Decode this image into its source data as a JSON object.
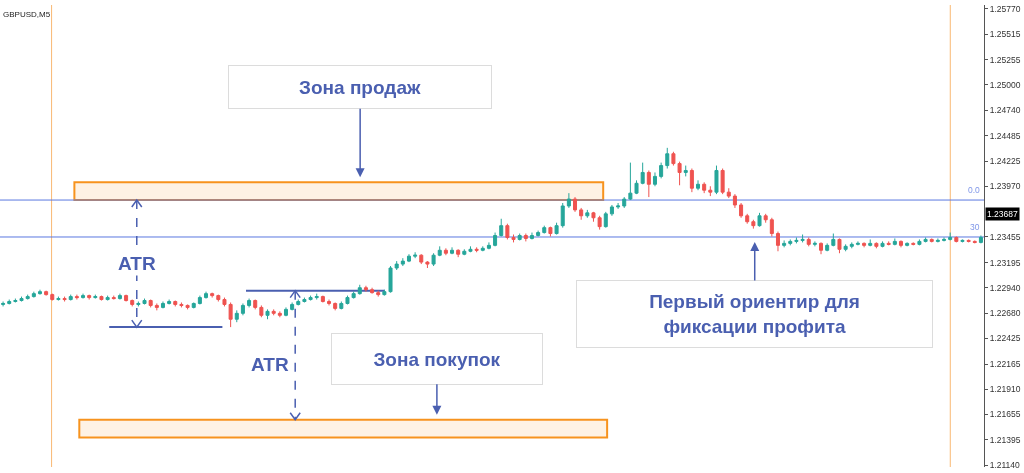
{
  "chart_data": {
    "type": "candlestick",
    "title": "GBPUSD,M5",
    "categories": [
      null,
      null,
      null,
      null,
      null,
      null,
      null,
      null,
      null,
      null,
      null,
      null,
      null,
      null,
      null,
      null,
      null,
      null,
      null,
      null,
      null,
      null,
      null,
      null,
      null,
      null,
      null,
      null,
      null,
      null,
      null,
      null,
      null,
      null,
      null,
      null,
      null,
      null,
      null,
      null,
      null,
      null,
      null,
      null,
      null,
      null,
      null,
      null,
      null,
      null,
      null,
      null,
      null,
      null,
      null,
      null,
      null,
      null,
      null,
      null,
      null,
      null,
      null,
      null,
      null,
      null,
      null,
      null,
      null,
      null,
      null,
      null,
      null,
      null,
      null,
      null,
      null,
      null,
      null,
      null,
      null,
      null,
      null,
      null,
      null,
      null,
      null,
      null,
      null,
      null,
      null,
      null,
      null,
      null,
      null,
      null,
      null,
      null,
      null,
      null,
      null,
      null,
      null,
      null,
      null,
      null,
      null,
      null,
      null,
      null,
      null,
      null,
      null,
      null,
      null,
      null,
      null,
      null,
      null,
      null,
      null,
      null,
      null,
      null,
      null,
      null,
      null,
      null,
      null,
      null,
      null,
      null,
      null,
      null,
      null,
      null,
      null,
      null,
      null,
      null,
      null,
      null,
      null,
      null,
      null,
      null,
      null,
      null,
      null,
      null,
      null,
      null,
      null,
      null,
      null,
      null,
      null,
      null,
      null,
      null
    ],
    "ohlc": [
      [
        1.2277,
        1.228,
        1.2275,
        1.2278
      ],
      [
        1.2278,
        1.2282,
        1.2277,
        1.228
      ],
      [
        1.228,
        1.2283,
        1.2279,
        1.2281
      ],
      [
        1.2281,
        1.2285,
        1.228,
        1.2283
      ],
      [
        1.2283,
        1.2287,
        1.2282,
        1.2285
      ],
      [
        1.2285,
        1.229,
        1.2284,
        1.2288
      ],
      [
        1.2288,
        1.2292,
        1.2287,
        1.229
      ],
      [
        1.229,
        1.2291,
        1.2286,
        1.2287
      ],
      [
        1.2287,
        1.2288,
        1.2281,
        1.2282
      ],
      [
        1.2282,
        1.2285,
        1.2281,
        1.2283
      ],
      [
        1.2283,
        1.2285,
        1.228,
        1.2282
      ],
      [
        1.2282,
        1.2287,
        1.2281,
        1.2285
      ],
      [
        1.2285,
        1.2287,
        1.2282,
        1.2284
      ],
      [
        1.2284,
        1.2288,
        1.2283,
        1.2286
      ],
      [
        1.2286,
        1.2287,
        1.2282,
        1.2284
      ],
      [
        1.2284,
        1.2287,
        1.2283,
        1.2285
      ],
      [
        1.2285,
        1.2286,
        1.2281,
        1.2282
      ],
      [
        1.2282,
        1.2286,
        1.2281,
        1.2284
      ],
      [
        1.2284,
        1.2286,
        1.2282,
        1.2283
      ],
      [
        1.2283,
        1.2288,
        1.2282,
        1.2286
      ],
      [
        1.2286,
        1.2287,
        1.228,
        1.2281
      ],
      [
        1.2281,
        1.2282,
        1.2275,
        1.2277
      ],
      [
        1.2277,
        1.228,
        1.2275,
        1.2278
      ],
      [
        1.2278,
        1.2283,
        1.2277,
        1.2281
      ],
      [
        1.2281,
        1.2282,
        1.2274,
        1.2276
      ],
      [
        1.2276,
        1.2278,
        1.2271,
        1.2274
      ],
      [
        1.2274,
        1.228,
        1.2273,
        1.2278
      ],
      [
        1.2278,
        1.2282,
        1.2277,
        1.228
      ],
      [
        1.228,
        1.2281,
        1.2275,
        1.2277
      ],
      [
        1.2277,
        1.2279,
        1.2274,
        1.2276
      ],
      [
        1.2276,
        1.2277,
        1.2272,
        1.2274
      ],
      [
        1.2274,
        1.2279,
        1.2273,
        1.2278
      ],
      [
        1.2278,
        1.2286,
        1.2277,
        1.2284
      ],
      [
        1.2284,
        1.229,
        1.2283,
        1.2288
      ],
      [
        1.2288,
        1.2289,
        1.2284,
        1.2286
      ],
      [
        1.2286,
        1.2287,
        1.228,
        1.2282
      ],
      [
        1.2282,
        1.2284,
        1.2275,
        1.2277
      ],
      [
        1.2277,
        1.2279,
        1.2254,
        1.2262
      ],
      [
        1.2262,
        1.2271,
        1.2259,
        1.2268
      ],
      [
        1.2268,
        1.2278,
        1.2266,
        1.2276
      ],
      [
        1.2276,
        1.2283,
        1.2274,
        1.2281
      ],
      [
        1.2281,
        1.2282,
        1.2272,
        1.2274
      ],
      [
        1.2274,
        1.2276,
        1.2264,
        1.2266
      ],
      [
        1.2266,
        1.2272,
        1.2262,
        1.227
      ],
      [
        1.227,
        1.2272,
        1.2266,
        1.2268
      ],
      [
        1.2268,
        1.227,
        1.2264,
        1.2266
      ],
      [
        1.2266,
        1.2274,
        1.2265,
        1.2272
      ],
      [
        1.2272,
        1.2279,
        1.2271,
        1.2277
      ],
      [
        1.2277,
        1.2282,
        1.2276,
        1.228
      ],
      [
        1.228,
        1.2284,
        1.2279,
        1.2282
      ],
      [
        1.2282,
        1.2286,
        1.2281,
        1.2284
      ],
      [
        1.2284,
        1.2288,
        1.2282,
        1.2285
      ],
      [
        1.2285,
        1.2286,
        1.2279,
        1.228
      ],
      [
        1.228,
        1.2282,
        1.2276,
        1.2278
      ],
      [
        1.2278,
        1.2279,
        1.2271,
        1.2273
      ],
      [
        1.2273,
        1.228,
        1.2272,
        1.2278
      ],
      [
        1.2278,
        1.2286,
        1.2277,
        1.2284
      ],
      [
        1.2284,
        1.229,
        1.2283,
        1.2288
      ],
      [
        1.2288,
        1.2297,
        1.2287,
        1.2294
      ],
      [
        1.2294,
        1.2296,
        1.229,
        1.2292
      ],
      [
        1.2292,
        1.2294,
        1.2288,
        1.2289
      ],
      [
        1.2289,
        1.2291,
        1.2285,
        1.2287
      ],
      [
        1.2287,
        1.2292,
        1.2286,
        1.229
      ],
      [
        1.229,
        1.2316,
        1.2289,
        1.2314
      ],
      [
        1.2314,
        1.2321,
        1.2312,
        1.2318
      ],
      [
        1.2318,
        1.2324,
        1.2316,
        1.2321
      ],
      [
        1.2321,
        1.2328,
        1.232,
        1.2326
      ],
      [
        1.2326,
        1.233,
        1.2324,
        1.2327
      ],
      [
        1.2327,
        1.2328,
        1.2318,
        1.232
      ],
      [
        1.232,
        1.2321,
        1.2314,
        1.2318
      ],
      [
        1.2318,
        1.2329,
        1.2316,
        1.2327
      ],
      [
        1.2327,
        1.2336,
        1.2326,
        1.2332
      ],
      [
        1.2332,
        1.2334,
        1.2327,
        1.2329
      ],
      [
        1.2329,
        1.2335,
        1.2328,
        1.2332
      ],
      [
        1.2332,
        1.2333,
        1.2325,
        1.2328
      ],
      [
        1.2328,
        1.2333,
        1.2327,
        1.2331
      ],
      [
        1.2331,
        1.2336,
        1.233,
        1.2333
      ],
      [
        1.2333,
        1.2335,
        1.233,
        1.2332
      ],
      [
        1.2332,
        1.2336,
        1.2331,
        1.2334
      ],
      [
        1.2334,
        1.234,
        1.2333,
        1.2337
      ],
      [
        1.2337,
        1.235,
        1.2336,
        1.2347
      ],
      [
        1.2347,
        1.2364,
        1.2346,
        1.2357
      ],
      [
        1.2357,
        1.2359,
        1.2343,
        1.2345
      ],
      [
        1.2345,
        1.2348,
        1.234,
        1.2343
      ],
      [
        1.2343,
        1.2349,
        1.2342,
        1.2347
      ],
      [
        1.2347,
        1.2349,
        1.2341,
        1.2344
      ],
      [
        1.2344,
        1.235,
        1.2343,
        1.2347
      ],
      [
        1.2347,
        1.2352,
        1.2346,
        1.235
      ],
      [
        1.235,
        1.2357,
        1.2349,
        1.2355
      ],
      [
        1.2355,
        1.2356,
        1.2346,
        1.2349
      ],
      [
        1.2349,
        1.236,
        1.2348,
        1.2357
      ],
      [
        1.2357,
        1.238,
        1.2355,
        1.2377
      ],
      [
        1.2377,
        1.239,
        1.2375,
        1.2384
      ],
      [
        1.2384,
        1.2386,
        1.2371,
        1.2373
      ],
      [
        1.2373,
        1.2375,
        1.2363,
        1.2367
      ],
      [
        1.2367,
        1.2373,
        1.2365,
        1.237
      ],
      [
        1.237,
        1.2371,
        1.2361,
        1.2365
      ],
      [
        1.2365,
        1.2367,
        1.2353,
        1.2356
      ],
      [
        1.2356,
        1.2371,
        1.2355,
        1.2369
      ],
      [
        1.2369,
        1.2378,
        1.2367,
        1.2376
      ],
      [
        1.2376,
        1.238,
        1.2374,
        1.2377
      ],
      [
        1.2377,
        1.2386,
        1.2375,
        1.2384
      ],
      [
        1.2384,
        1.2421,
        1.2383,
        1.239
      ],
      [
        1.239,
        1.2403,
        1.2389,
        1.24
      ],
      [
        1.24,
        1.2421,
        1.2399,
        1.2411
      ],
      [
        1.2411,
        1.2413,
        1.2386,
        1.2399
      ],
      [
        1.2399,
        1.2411,
        1.2397,
        1.2407
      ],
      [
        1.2407,
        1.2421,
        1.2405,
        1.2418
      ],
      [
        1.2418,
        1.2436,
        1.2415,
        1.243
      ],
      [
        1.243,
        1.2432,
        1.2418,
        1.242
      ],
      [
        1.242,
        1.2422,
        1.2398,
        1.2411
      ],
      [
        1.2411,
        1.2418,
        1.2407,
        1.2413
      ],
      [
        1.2413,
        1.2415,
        1.2391,
        1.2395
      ],
      [
        1.2395,
        1.2403,
        1.2393,
        1.2399
      ],
      [
        1.2399,
        1.2401,
        1.239,
        1.2393
      ],
      [
        1.2393,
        1.2397,
        1.2387,
        1.2391
      ],
      [
        1.2391,
        1.2418,
        1.2389,
        1.2413
      ],
      [
        1.2413,
        1.2415,
        1.2389,
        1.2391
      ],
      [
        1.2391,
        1.2395,
        1.2385,
        1.2387
      ],
      [
        1.2387,
        1.2389,
        1.2375,
        1.2378
      ],
      [
        1.2378,
        1.238,
        1.2365,
        1.2367
      ],
      [
        1.2367,
        1.2369,
        1.2359,
        1.2361
      ],
      [
        1.2361,
        1.2363,
        1.2354,
        1.2357
      ],
      [
        1.2357,
        1.237,
        1.2356,
        1.2367
      ],
      [
        1.2367,
        1.2369,
        1.236,
        1.2363
      ],
      [
        1.2363,
        1.2365,
        1.2346,
        1.2349
      ],
      [
        1.2349,
        1.2351,
        1.2331,
        1.2337
      ],
      [
        1.2337,
        1.2342,
        1.2335,
        1.2339
      ],
      [
        1.2339,
        1.2343,
        1.2337,
        1.2341
      ],
      [
        1.2341,
        1.2345,
        1.2339,
        1.2342
      ],
      [
        1.2342,
        1.2348,
        1.234,
        1.2343
      ],
      [
        1.2343,
        1.2345,
        1.2336,
        1.2338
      ],
      [
        1.2338,
        1.2341,
        1.2336,
        1.2339
      ],
      [
        1.2339,
        1.234,
        1.2328,
        1.2332
      ],
      [
        1.2332,
        1.2339,
        1.2331,
        1.2337
      ],
      [
        1.2337,
        1.2349,
        1.2336,
        1.2343
      ],
      [
        1.2343,
        1.2344,
        1.2329,
        1.2333
      ],
      [
        1.2333,
        1.2338,
        1.2331,
        1.2336
      ],
      [
        1.2336,
        1.234,
        1.2334,
        1.2338
      ],
      [
        1.2338,
        1.2341,
        1.2337,
        1.2339
      ],
      [
        1.2339,
        1.234,
        1.2335,
        1.2337
      ],
      [
        1.2337,
        1.2343,
        1.2336,
        1.2339
      ],
      [
        1.2339,
        1.234,
        1.2334,
        1.2336
      ],
      [
        1.2336,
        1.2341,
        1.2335,
        1.2339
      ],
      [
        1.2339,
        1.2341,
        1.2337,
        1.2338
      ],
      [
        1.2338,
        1.2344,
        1.2337,
        1.2341
      ],
      [
        1.2341,
        1.2342,
        1.2335,
        1.2337
      ],
      [
        1.2337,
        1.234,
        1.2336,
        1.2339
      ],
      [
        1.2339,
        1.234,
        1.2337,
        1.2338
      ],
      [
        1.2338,
        1.2343,
        1.2337,
        1.2341
      ],
      [
        1.2341,
        1.2345,
        1.234,
        1.2343
      ],
      [
        1.2343,
        1.2344,
        1.234,
        1.2341
      ],
      [
        1.2341,
        1.2344,
        1.234,
        1.2342
      ],
      [
        1.2342,
        1.2345,
        1.2341,
        1.2343
      ],
      [
        1.2343,
        1.235,
        1.2342,
        1.2345
      ],
      [
        1.2345,
        1.2346,
        1.234,
        1.2341
      ],
      [
        1.2341,
        1.2343,
        1.234,
        1.2342
      ],
      [
        1.2342,
        1.2343,
        1.234,
        1.2341
      ],
      [
        1.2341,
        1.2342,
        1.2339,
        1.234
      ],
      [
        1.234,
        1.2347,
        1.2339,
        1.2345
      ]
    ],
    "colors": [
      "#26a69a",
      "#26a69a",
      "#26a69a",
      "#26a69a",
      "#26a69a",
      "#26a69a",
      "#26a69a",
      "#ef5350",
      "#ef5350",
      "#26a69a",
      "#ef5350",
      "#26a69a",
      "#ef5350",
      "#26a69a",
      "#ef5350",
      "#26a69a",
      "#ef5350",
      "#26a69a",
      "#ef5350",
      "#26a69a",
      "#ef5350",
      "#ef5350",
      "#26a69a",
      "#26a69a",
      "#ef5350",
      "#ef5350",
      "#26a69a",
      "#26a69a",
      "#ef5350",
      "#ef5350",
      "#ef5350",
      "#26a69a",
      "#26a69a",
      "#26a69a",
      "#ef5350",
      "#ef5350",
      "#ef5350",
      "#ef5350",
      "#26a69a",
      "#26a69a",
      "#26a69a",
      "#ef5350",
      "#ef5350",
      "#26a69a",
      "#ef5350",
      "#ef5350",
      "#26a69a",
      "#26a69a",
      "#26a69a",
      "#26a69a",
      "#26a69a",
      "#26a69a",
      "#ef5350",
      "#ef5350",
      "#ef5350",
      "#26a69a",
      "#26a69a",
      "#26a69a",
      "#26a69a",
      "#ef5350",
      "#ef5350",
      "#ef5350",
      "#26a69a",
      "#26a69a",
      "#26a69a",
      "#26a69a",
      "#26a69a",
      "#26a69a",
      "#ef5350",
      "#ef5350",
      "#26a69a",
      "#26a69a",
      "#ef5350",
      "#26a69a",
      "#ef5350",
      "#26a69a",
      "#26a69a",
      "#ef5350",
      "#26a69a",
      "#26a69a",
      "#26a69a",
      "#26a69a",
      "#ef5350",
      "#ef5350",
      "#26a69a",
      "#ef5350",
      "#26a69a",
      "#26a69a",
      "#26a69a",
      "#ef5350",
      "#26a69a",
      "#26a69a",
      "#26a69a",
      "#ef5350",
      "#ef5350",
      "#26a69a",
      "#ef5350",
      "#ef5350",
      "#26a69a",
      "#26a69a",
      "#26a69a",
      "#26a69a",
      "#26a69a",
      "#26a69a",
      "#26a69a",
      "#ef5350",
      "#26a69a",
      "#26a69a",
      "#26a69a",
      "#ef5350",
      "#ef5350",
      "#26a69a",
      "#ef5350",
      "#26a69a",
      "#ef5350",
      "#ef5350",
      "#26a69a",
      "#ef5350",
      "#ef5350",
      "#ef5350",
      "#ef5350",
      "#ef5350",
      "#ef5350",
      "#26a69a",
      "#ef5350",
      "#ef5350",
      "#ef5350",
      "#26a69a",
      "#26a69a",
      "#26a69a",
      "#26a69a",
      "#ef5350",
      "#26a69a",
      "#ef5350",
      "#26a69a",
      "#26a69a",
      "#ef5350",
      "#26a69a",
      "#26a69a",
      "#26a69a",
      "#ef5350",
      "#26a69a",
      "#ef5350",
      "#26a69a",
      "#ef5350",
      "#26a69a",
      "#ef5350",
      "#26a69a",
      "#ef5350",
      "#26a69a",
      "#26a69a",
      "#ef5350",
      "#26a69a",
      "#26a69a",
      "#26a69a",
      "#ef5350",
      "#26a69a",
      "#ef5350",
      "#ef5350",
      "#26a69a"
    ],
    "ylim": [
      1.2112,
      1.2581
    ],
    "yticks": [
      {
        "value": 1.2577,
        "label": "1.25770"
      },
      1.25515,
      1.25255,
      {
        "value": 1.25,
        "label": "1.25000"
      },
      {
        "value": 1.2474,
        "label": "1.24740"
      },
      1.24485,
      1.24225,
      {
        "value": 1.2397,
        "label": "1.23970"
      },
      1.23455,
      1.23195,
      {
        "value": 1.2294,
        "label": "1.22940"
      },
      {
        "value": 1.2268,
        "label": "1.22680"
      },
      1.22425,
      1.22165,
      {
        "value": 1.2191,
        "label": "1.21910"
      },
      1.21655,
      1.21395,
      {
        "value": 1.2114,
        "label": "1.21140"
      }
    ],
    "tick_labels": "y",
    "bands": [
      {
        "axis": "y",
        "from": 1.2383,
        "to": 1.2401,
        "label": "Зона продаж",
        "color": "#f7931e"
      },
      {
        "axis": "y",
        "from": 1.2142,
        "to": 1.216,
        "label": "Зона покупок",
        "color": "#f7931e"
      }
    ],
    "ref_lines": [
      {
        "axis": "y",
        "value": 1.2383,
        "color": "#5a78e0"
      },
      {
        "axis": "y",
        "value": 1.23455,
        "color": "#5a78e0"
      },
      {
        "axis": "y",
        "value": 1.2254,
        "color": "#4a5fb0"
      },
      {
        "axis": "y",
        "value": 1.2291,
        "color": "#4a5fb0"
      }
    ],
    "annotations": [
      "ATR",
      "ATR",
      {
        "text": "Первый ориентир для фиксации профита",
        "y": 1.23455
      },
      {
        "text": "1.23687",
        "y": 1.23687
      },
      {
        "text": "0.0",
        "y": 1.2383
      },
      {
        "text": "30",
        "y": 1.23455
      }
    ]
  }
}
